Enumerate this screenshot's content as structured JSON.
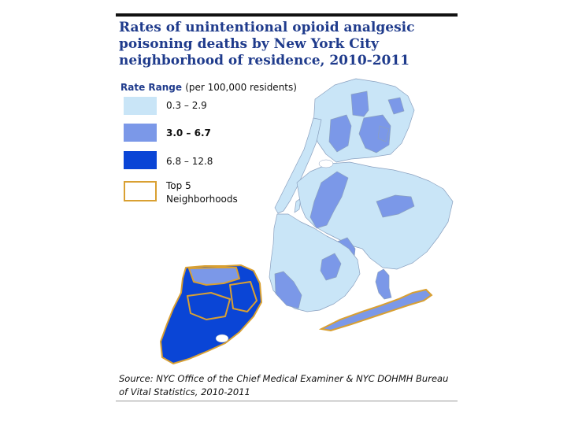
{
  "title": {
    "line1": "Rates of unintentional opioid analgesic",
    "line2": "poisoning deaths by New York City",
    "line3": "neighborhood of residence, 2010-2011"
  },
  "legend": {
    "heading": "Rate Range",
    "heading_paren": "(per 100,000 residents)",
    "items": [
      {
        "label": "0.3 – 2.9",
        "color": "#c9e5f7"
      },
      {
        "label": "3.0 – 6.7",
        "color": "#7b98e8"
      },
      {
        "label": "6.8 – 12.8",
        "color": "#0a45d6"
      }
    ],
    "top5_line1": "Top 5",
    "top5_line2": "Neighborhoods",
    "top5_color": "#d9a032"
  },
  "source": {
    "line1": "Source: NYC Office of the Chief Medical Examiner & NYC DOHMH Bureau",
    "line2": "of Vital Statistics, 2010-2011"
  },
  "map": {
    "boroughs": {
      "manhattan": "low",
      "bronx": "mixed",
      "queens": "mixed",
      "brooklyn": "mixed",
      "staten_island": "high"
    },
    "rockaway": "medium"
  }
}
